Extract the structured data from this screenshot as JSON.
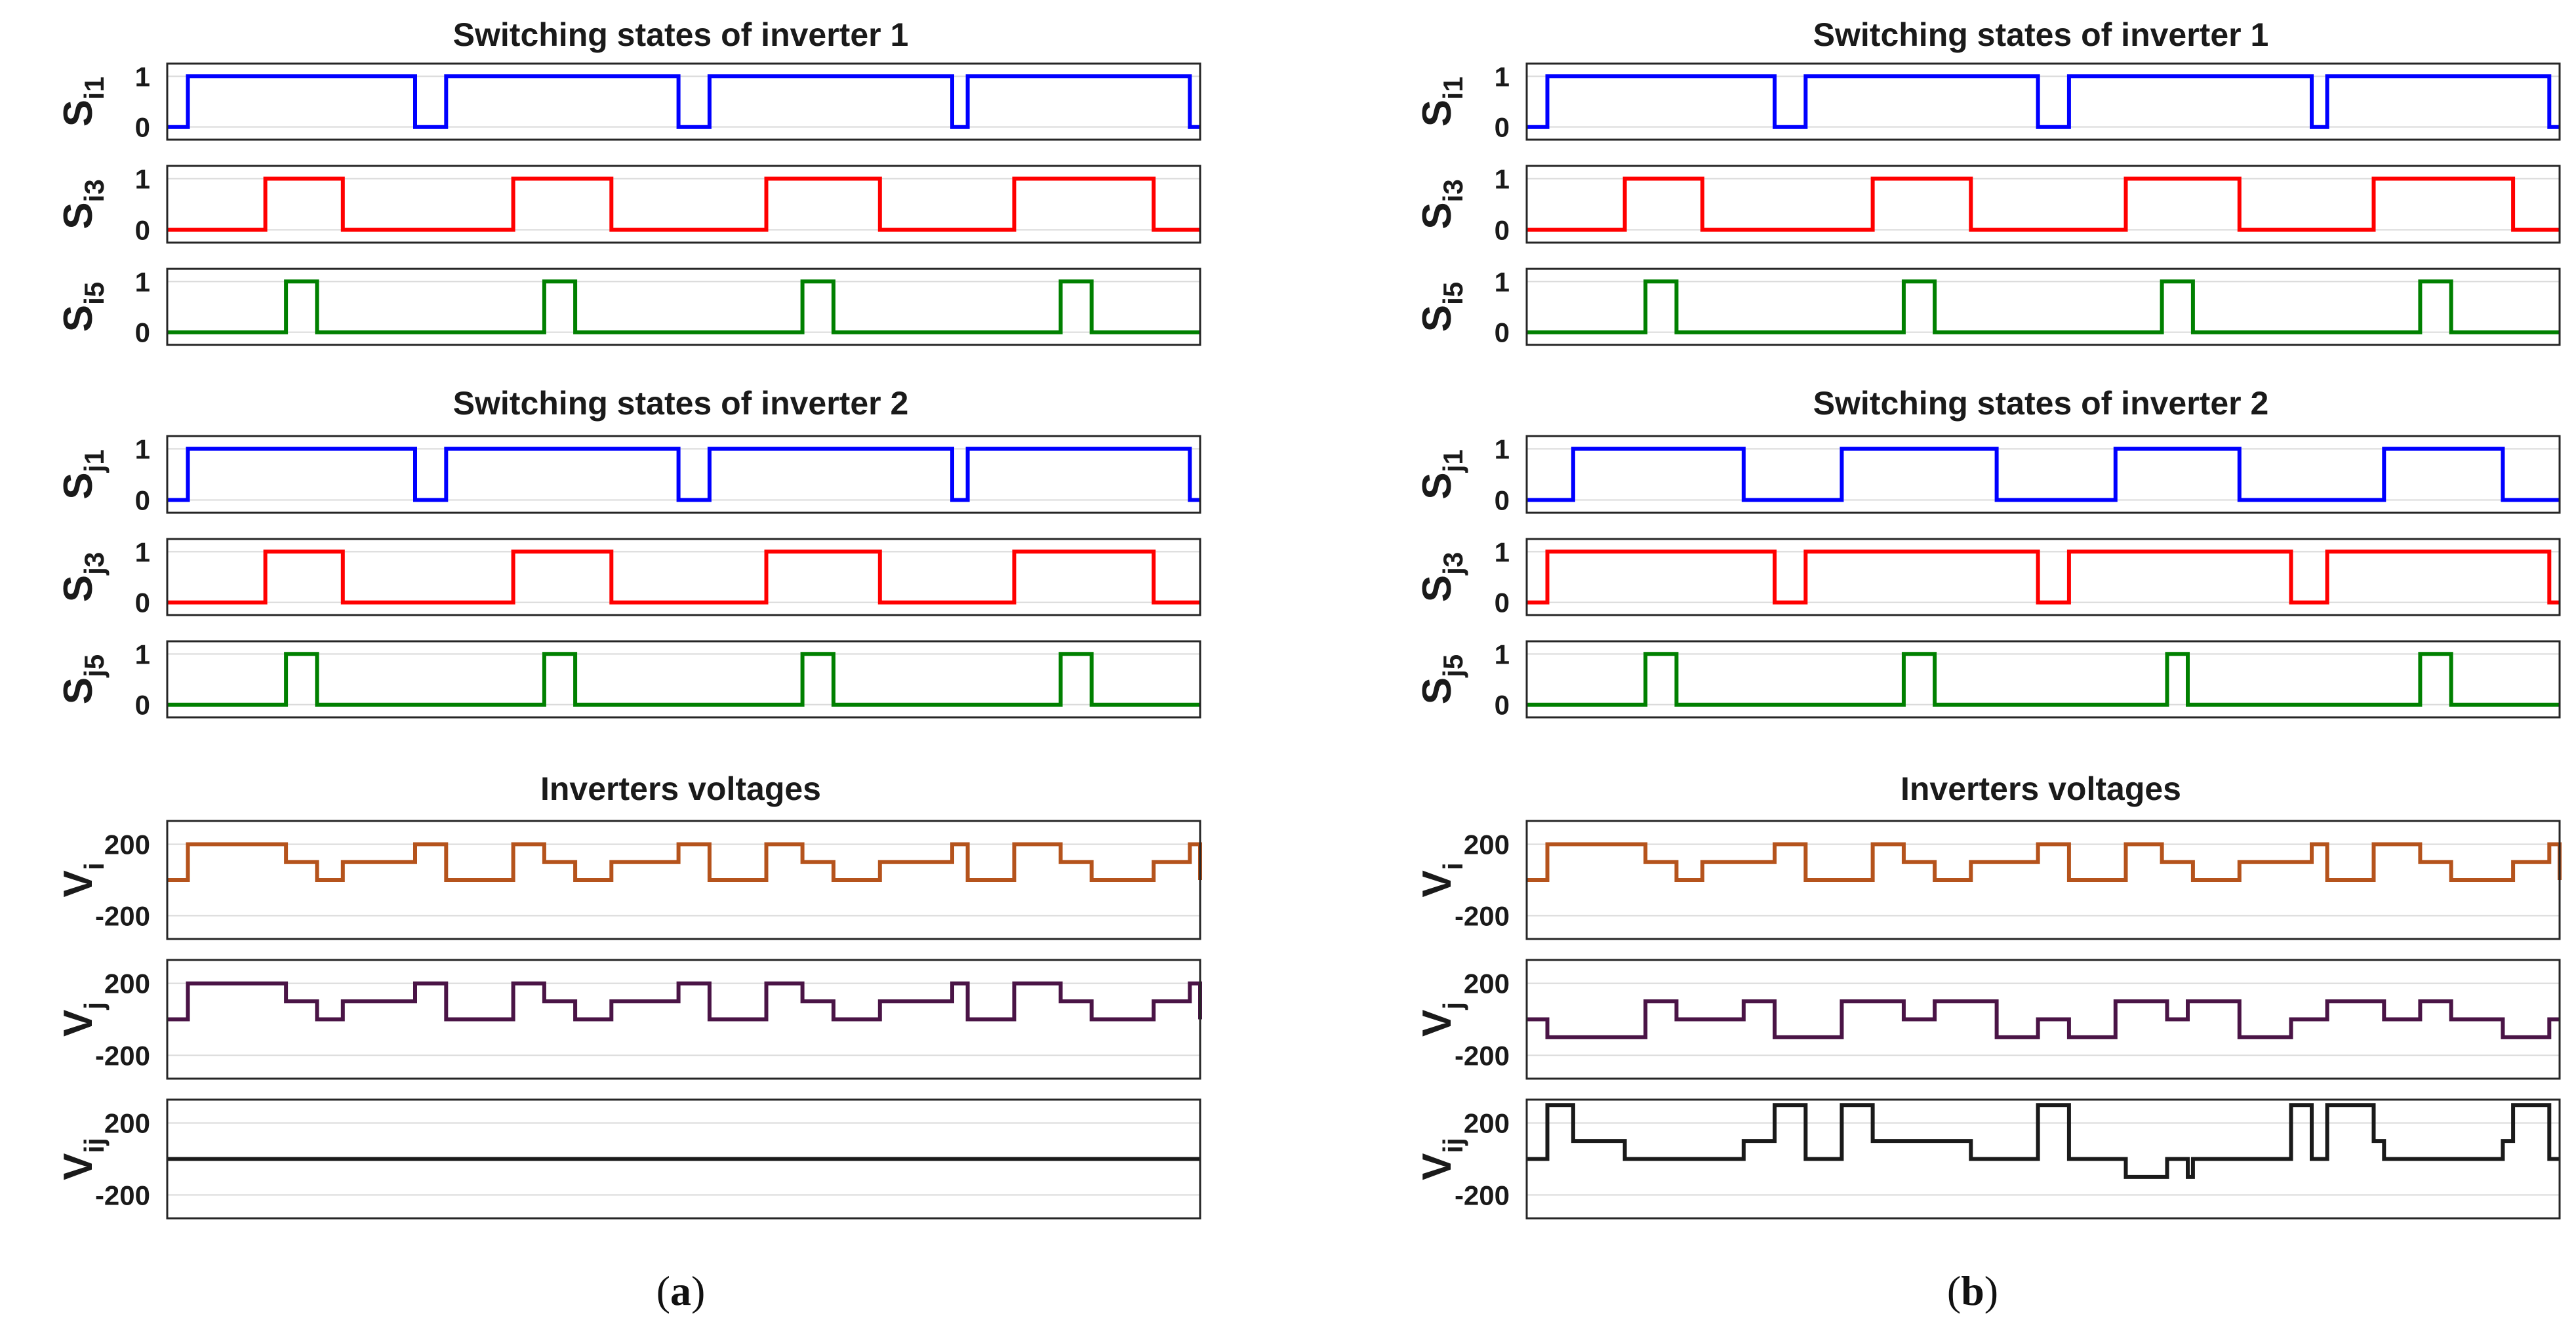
{
  "figure": {
    "subfigure_a_caption": {
      "open": "(",
      "letter": "a",
      "close": ")"
    },
    "subfigure_b_caption": {
      "open": "(",
      "letter": "b",
      "close": ")"
    }
  },
  "colors": {
    "blue": "#0000ff",
    "red": "#ff0000",
    "green": "#008000",
    "brown": "#b5531c",
    "purple": "#4a1446",
    "black": "#1a1a1a"
  },
  "chart_data": [
    {
      "type": "line",
      "id": "a",
      "caption": "(a)",
      "x_range": [
        0,
        1
      ],
      "groups": [
        {
          "title": "Switching states of inverter 1"
        },
        {
          "title": "Switching states of inverter 2"
        },
        {
          "title": "Inverters voltages"
        }
      ],
      "series": [
        {
          "name": "Si1",
          "label_main": "S",
          "label_sub": "i1",
          "color": "blue",
          "ylim": [
            -0.25,
            1.25
          ],
          "yticks": [
            "1",
            "0"
          ],
          "ytick_values": [
            1,
            0
          ],
          "x": [
            0,
            0.02,
            0.24,
            0.27,
            0.495,
            0.525,
            0.76,
            0.775,
            0.99,
            1.0
          ],
          "y": [
            0,
            1,
            0,
            1,
            0,
            1,
            0,
            1,
            0,
            0
          ]
        },
        {
          "name": "Si3",
          "label_main": "S",
          "label_sub": "i3",
          "color": "red",
          "ylim": [
            -0.25,
            1.25
          ],
          "yticks": [
            "1",
            "0"
          ],
          "ytick_values": [
            1,
            0
          ],
          "x": [
            0,
            0.095,
            0.17,
            0.335,
            0.43,
            0.58,
            0.69,
            0.82,
            0.955,
            1.0
          ],
          "y": [
            0,
            1,
            0,
            1,
            0,
            1,
            0,
            1,
            0,
            0
          ]
        },
        {
          "name": "Si5",
          "label_main": "S",
          "label_sub": "i5",
          "color": "green",
          "ylim": [
            -0.25,
            1.25
          ],
          "yticks": [
            "1",
            "0"
          ],
          "ytick_values": [
            1,
            0
          ],
          "x": [
            0,
            0.115,
            0.145,
            0.365,
            0.395,
            0.615,
            0.645,
            0.865,
            0.895,
            1.0
          ],
          "y": [
            0,
            1,
            0,
            1,
            0,
            1,
            0,
            1,
            0,
            0
          ]
        },
        {
          "name": "Sj1",
          "label_main": "S",
          "label_sub": "j1",
          "color": "blue",
          "ylim": [
            -0.25,
            1.25
          ],
          "yticks": [
            "1",
            "0"
          ],
          "ytick_values": [
            1,
            0
          ],
          "x": [
            0,
            0.02,
            0.24,
            0.27,
            0.495,
            0.525,
            0.76,
            0.775,
            0.99,
            1.0
          ],
          "y": [
            0,
            1,
            0,
            1,
            0,
            1,
            0,
            1,
            0,
            0
          ]
        },
        {
          "name": "Sj3",
          "label_main": "S",
          "label_sub": "j3",
          "color": "red",
          "ylim": [
            -0.25,
            1.25
          ],
          "yticks": [
            "1",
            "0"
          ],
          "ytick_values": [
            1,
            0
          ],
          "x": [
            0,
            0.095,
            0.17,
            0.335,
            0.43,
            0.58,
            0.69,
            0.82,
            0.955,
            1.0
          ],
          "y": [
            0,
            1,
            0,
            1,
            0,
            1,
            0,
            1,
            0,
            0
          ]
        },
        {
          "name": "Sj5",
          "label_main": "S",
          "label_sub": "j5",
          "color": "green",
          "ylim": [
            -0.25,
            1.25
          ],
          "yticks": [
            "1",
            "0"
          ],
          "ytick_values": [
            1,
            0
          ],
          "x": [
            0,
            0.115,
            0.145,
            0.365,
            0.395,
            0.615,
            0.645,
            0.865,
            0.895,
            1.0
          ],
          "y": [
            0,
            1,
            0,
            1,
            0,
            1,
            0,
            1,
            0,
            0
          ]
        },
        {
          "name": "Vi",
          "label_main": "V",
          "label_sub": "i",
          "color": "brown",
          "ylim": [
            -330,
            330
          ],
          "yticks": [
            "200",
            "-200"
          ],
          "ytick_values": [
            200,
            -200
          ],
          "x": [
            0,
            0.02,
            0.095,
            0.115,
            0.145,
            0.17,
            0.24,
            0.27,
            0.335,
            0.365,
            0.395,
            0.43,
            0.495,
            0.525,
            0.58,
            0.615,
            0.645,
            0.69,
            0.76,
            0.775,
            0.82,
            0.865,
            0.895,
            0.955,
            0.99,
            1.0
          ],
          "y": [
            0,
            200,
            200,
            100,
            0,
            100,
            200,
            0,
            200,
            100,
            0,
            100,
            200,
            0,
            200,
            100,
            0,
            100,
            200,
            0,
            200,
            100,
            0,
            100,
            200,
            0
          ]
        },
        {
          "name": "Vj",
          "label_main": "V",
          "label_sub": "j",
          "color": "purple",
          "ylim": [
            -330,
            330
          ],
          "yticks": [
            "200",
            "-200"
          ],
          "ytick_values": [
            200,
            -200
          ],
          "x": [
            0,
            0.02,
            0.095,
            0.115,
            0.145,
            0.17,
            0.24,
            0.27,
            0.335,
            0.365,
            0.395,
            0.43,
            0.495,
            0.525,
            0.58,
            0.615,
            0.645,
            0.69,
            0.76,
            0.775,
            0.82,
            0.865,
            0.895,
            0.955,
            0.99,
            1.0
          ],
          "y": [
            0,
            200,
            200,
            100,
            0,
            100,
            200,
            0,
            200,
            100,
            0,
            100,
            200,
            0,
            200,
            100,
            0,
            100,
            200,
            0,
            200,
            100,
            0,
            100,
            200,
            0
          ]
        },
        {
          "name": "Vij",
          "label_main": "V",
          "label_sub": "ij",
          "color": "black",
          "ylim": [
            -330,
            330
          ],
          "yticks": [
            "200",
            "-200"
          ],
          "ytick_values": [
            200,
            -200
          ],
          "x": [
            0,
            1.0
          ],
          "y": [
            0,
            0
          ]
        }
      ]
    },
    {
      "type": "line",
      "id": "b",
      "caption": "(b)",
      "x_range": [
        0,
        1
      ],
      "groups": [
        {
          "title": "Switching states of inverter 1"
        },
        {
          "title": "Switching states of inverter 2"
        },
        {
          "title": "Inverters voltages"
        }
      ],
      "series": [
        {
          "name": "Si1",
          "label_main": "S",
          "label_sub": "i1",
          "color": "blue",
          "ylim": [
            -0.25,
            1.25
          ],
          "yticks": [
            "1",
            "0"
          ],
          "ytick_values": [
            1,
            0
          ],
          "x": [
            0,
            0.02,
            0.24,
            0.27,
            0.495,
            0.525,
            0.76,
            0.775,
            0.99,
            1.0
          ],
          "y": [
            0,
            1,
            0,
            1,
            0,
            1,
            0,
            1,
            0,
            0
          ]
        },
        {
          "name": "Si3",
          "label_main": "S",
          "label_sub": "i3",
          "color": "red",
          "ylim": [
            -0.25,
            1.25
          ],
          "yticks": [
            "1",
            "0"
          ],
          "ytick_values": [
            1,
            0
          ],
          "x": [
            0,
            0.095,
            0.17,
            0.335,
            0.43,
            0.58,
            0.69,
            0.82,
            0.955,
            1.0
          ],
          "y": [
            0,
            1,
            0,
            1,
            0,
            1,
            0,
            1,
            0,
            0
          ]
        },
        {
          "name": "Si5",
          "label_main": "S",
          "label_sub": "i5",
          "color": "green",
          "ylim": [
            -0.25,
            1.25
          ],
          "yticks": [
            "1",
            "0"
          ],
          "ytick_values": [
            1,
            0
          ],
          "x": [
            0,
            0.115,
            0.145,
            0.365,
            0.395,
            0.615,
            0.645,
            0.865,
            0.895,
            1.0
          ],
          "y": [
            0,
            1,
            0,
            1,
            0,
            1,
            0,
            1,
            0,
            0
          ]
        },
        {
          "name": "Sj1",
          "label_main": "S",
          "label_sub": "j1",
          "color": "blue",
          "ylim": [
            -0.25,
            1.25
          ],
          "yticks": [
            "1",
            "0"
          ],
          "ytick_values": [
            1,
            0
          ],
          "x": [
            0,
            0.045,
            0.21,
            0.305,
            0.455,
            0.57,
            0.69,
            0.83,
            0.945,
            1.0
          ],
          "y": [
            0,
            1,
            0,
            1,
            0,
            1,
            0,
            1,
            0,
            0
          ]
        },
        {
          "name": "Sj3",
          "label_main": "S",
          "label_sub": "j3",
          "color": "red",
          "ylim": [
            -0.25,
            1.25
          ],
          "yticks": [
            "1",
            "0"
          ],
          "ytick_values": [
            1,
            0
          ],
          "x": [
            0,
            0.02,
            0.24,
            0.27,
            0.495,
            0.525,
            0.74,
            0.775,
            0.99,
            1.0
          ],
          "y": [
            0,
            1,
            0,
            1,
            0,
            1,
            0,
            1,
            0,
            0
          ]
        },
        {
          "name": "Sj5",
          "label_main": "S",
          "label_sub": "j5",
          "color": "green",
          "ylim": [
            -0.25,
            1.25
          ],
          "yticks": [
            "1",
            "0"
          ],
          "ytick_values": [
            1,
            0
          ],
          "x": [
            0,
            0.115,
            0.145,
            0.365,
            0.395,
            0.62,
            0.64,
            0.865,
            0.895,
            1.0
          ],
          "y": [
            0,
            1,
            0,
            1,
            0,
            1,
            0,
            1,
            0,
            0
          ]
        },
        {
          "name": "Vi",
          "label_main": "V",
          "label_sub": "i",
          "color": "brown",
          "ylim": [
            -330,
            330
          ],
          "yticks": [
            "200",
            "-200"
          ],
          "ytick_values": [
            200,
            -200
          ],
          "x": [
            0,
            0.02,
            0.095,
            0.115,
            0.145,
            0.17,
            0.24,
            0.27,
            0.335,
            0.365,
            0.395,
            0.43,
            0.495,
            0.525,
            0.58,
            0.615,
            0.645,
            0.69,
            0.76,
            0.775,
            0.82,
            0.865,
            0.895,
            0.955,
            0.99,
            1.0
          ],
          "y": [
            0,
            200,
            200,
            100,
            0,
            100,
            200,
            0,
            200,
            100,
            0,
            100,
            200,
            0,
            200,
            100,
            0,
            100,
            200,
            0,
            200,
            100,
            0,
            100,
            200,
            0
          ]
        },
        {
          "name": "Vj",
          "label_main": "V",
          "label_sub": "j",
          "color": "purple",
          "ylim": [
            -330,
            330
          ],
          "yticks": [
            "200",
            "-200"
          ],
          "ytick_values": [
            200,
            -200
          ],
          "x": [
            0,
            0.02,
            0.115,
            0.145,
            0.21,
            0.24,
            0.27,
            0.305,
            0.365,
            0.395,
            0.455,
            0.495,
            0.525,
            0.57,
            0.62,
            0.64,
            0.69,
            0.74,
            0.775,
            0.83,
            0.865,
            0.895,
            0.945,
            0.99,
            1.0
          ],
          "y": [
            0,
            -100,
            100,
            0,
            100,
            -100,
            -100,
            100,
            0,
            100,
            -100,
            0,
            -100,
            100,
            0,
            100,
            -100,
            0,
            100,
            0,
            100,
            0,
            -100,
            0,
            0
          ]
        },
        {
          "name": "Vij",
          "label_main": "V",
          "label_sub": "ij",
          "color": "black",
          "ylim": [
            -330,
            330
          ],
          "yticks": [
            "200",
            "-200"
          ],
          "ytick_values": [
            200,
            -200
          ],
          "x": [
            0,
            0.02,
            0.045,
            0.095,
            0.17,
            0.21,
            0.24,
            0.27,
            0.305,
            0.335,
            0.43,
            0.455,
            0.495,
            0.525,
            0.57,
            0.58,
            0.62,
            0.64,
            0.645,
            0.69,
            0.74,
            0.76,
            0.775,
            0.82,
            0.83,
            0.945,
            0.955,
            0.99,
            1.0
          ],
          "y": [
            0,
            300,
            100,
            0,
            0,
            100,
            300,
            0,
            300,
            100,
            0,
            0,
            300,
            0,
            0,
            -100,
            0,
            -100,
            0,
            0,
            300,
            0,
            300,
            100,
            0,
            100,
            300,
            0,
            0
          ]
        }
      ]
    }
  ]
}
